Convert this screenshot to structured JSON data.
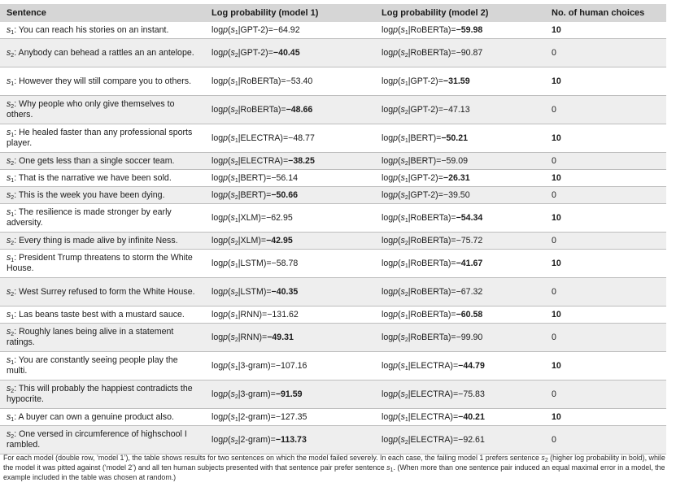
{
  "headers": {
    "sentence": "Sentence",
    "model1": "Log probability (model 1)",
    "model2": "Log probability (model 2)",
    "human": "No. of human choices"
  },
  "rows": [
    {
      "s": "1",
      "text": "You can reach his stories on an instant.",
      "m1": "GPT-2",
      "v1": "−64.92",
      "b1": false,
      "m2": "RoBERTa",
      "v2": "−59.98",
      "b2": true,
      "h": "10",
      "hb": true,
      "tall": false
    },
    {
      "s": "2",
      "text": "Anybody can behead a rattles an an antelope.",
      "m1": "GPT-2",
      "v1": "−40.45",
      "b1": true,
      "m2": "RoBERTa",
      "v2": "−90.87",
      "b2": false,
      "h": "0",
      "hb": false,
      "tall": true
    },
    {
      "s": "1",
      "text": "However they will still compare you to others.",
      "m1": "RoBERTa",
      "v1": "−53.40",
      "b1": false,
      "m2": "GPT-2",
      "v2": "−31.59",
      "b2": true,
      "h": "10",
      "hb": true,
      "tall": true
    },
    {
      "s": "2",
      "text": "Why people who only give themselves to others.",
      "m1": "RoBERTa",
      "v1": "−48.66",
      "b1": true,
      "m2": "GPT-2",
      "v2": "−47.13",
      "b2": false,
      "h": "0",
      "hb": false,
      "tall": true
    },
    {
      "s": "1",
      "text": "He healed faster than any professional sports player.",
      "m1": "ELECTRA",
      "v1": "−48.77",
      "b1": false,
      "m2": "BERT",
      "v2": "−50.21",
      "b2": true,
      "h": "10",
      "hb": true,
      "tall": true
    },
    {
      "s": "2",
      "text": "One gets less than a single soccer team.",
      "m1": "ELECTRA",
      "v1": "−38.25",
      "b1": true,
      "m2": "BERT",
      "v2": "−59.09",
      "b2": false,
      "h": "0",
      "hb": false,
      "tall": false
    },
    {
      "s": "1",
      "text": "That is the narrative we have been sold.",
      "m1": "BERT",
      "v1": "−56.14",
      "b1": false,
      "m2": "GPT-2",
      "v2": "−26.31",
      "b2": true,
      "h": "10",
      "hb": true,
      "tall": false
    },
    {
      "s": "2",
      "text": "This is the week you have been dying.",
      "m1": "BERT",
      "v1": "−50.66",
      "b1": true,
      "m2": "GPT-2",
      "v2": "−39.50",
      "b2": false,
      "h": "0",
      "hb": false,
      "tall": false
    },
    {
      "s": "1",
      "text": "The resilience is made stronger by early adversity.",
      "m1": "XLM",
      "v1": "−62.95",
      "b1": false,
      "m2": "RoBERTa",
      "v2": "−54.34",
      "b2": true,
      "h": "10",
      "hb": true,
      "tall": true
    },
    {
      "s": "2",
      "text": "Every thing is made alive by infinite Ness.",
      "m1": "XLM",
      "v1": "−42.95",
      "b1": true,
      "m2": "RoBERTa",
      "v2": "−75.72",
      "b2": false,
      "h": "0",
      "hb": false,
      "tall": false
    },
    {
      "s": "1",
      "text": "President Trump threatens to storm the White House.",
      "m1": "LSTM",
      "v1": "−58.78",
      "b1": false,
      "m2": "RoBERTa",
      "v2": "−41.67",
      "b2": true,
      "h": "10",
      "hb": true,
      "tall": true
    },
    {
      "s": "2",
      "text": "West Surrey refused to form the White House.",
      "m1": "LSTM",
      "v1": "−40.35",
      "b1": true,
      "m2": "RoBERTa",
      "v2": "−67.32",
      "b2": false,
      "h": "0",
      "hb": false,
      "tall": true
    },
    {
      "s": "1",
      "text": "Las beans taste best with a mustard sauce.",
      "m1": "RNN",
      "v1": "−131.62",
      "b1": false,
      "m2": "RoBERTa",
      "v2": "−60.58",
      "b2": true,
      "h": "10",
      "hb": true,
      "tall": false
    },
    {
      "s": "2",
      "text": "Roughly lanes being alive in a statement ratings.",
      "m1": "RNN",
      "v1": "−49.31",
      "b1": true,
      "m2": "RoBERTa",
      "v2": "−99.90",
      "b2": false,
      "h": "0",
      "hb": false,
      "tall": true
    },
    {
      "s": "1",
      "text": "You are constantly seeing people play the multi.",
      "m1": "3-gram",
      "v1": "−107.16",
      "b1": false,
      "m2": "ELECTRA",
      "v2": "−44.79",
      "b2": true,
      "h": "10",
      "hb": true,
      "tall": true
    },
    {
      "s": "2",
      "text": "This will probably the happiest contradicts the hypocrite.",
      "m1": "3-gram",
      "v1": "−91.59",
      "b1": true,
      "m2": "ELECTRA",
      "v2": "−75.83",
      "b2": false,
      "h": "0",
      "hb": false,
      "tall": true
    },
    {
      "s": "1",
      "text": "A buyer can own a genuine product also.",
      "m1": "2-gram",
      "v1": "−127.35",
      "b1": false,
      "m2": "ELECTRA",
      "v2": "−40.21",
      "b2": true,
      "h": "10",
      "hb": true,
      "tall": false
    },
    {
      "s": "2",
      "text": "One versed in circumference of highschool I rambled.",
      "m1": "2-gram",
      "v1": "−113.73",
      "b1": true,
      "m2": "ELECTRA",
      "v2": "−92.61",
      "b2": false,
      "h": "0",
      "hb": false,
      "tall": true
    }
  ],
  "footnote": {
    "part1": "For each model (double row, ‘model 1’), the table shows results for two sentences on which the model failed severely. In each case, the failing model 1 prefers sentence ",
    "part2": " (higher log probability in bold), while the model it was pitted against (‘model 2’) and all ten human subjects presented with that sentence pair prefer sentence ",
    "part3": ". (When more than one sentence pair induced an equal maximal error in a model, the example included in the table was chosen at random.)"
  }
}
